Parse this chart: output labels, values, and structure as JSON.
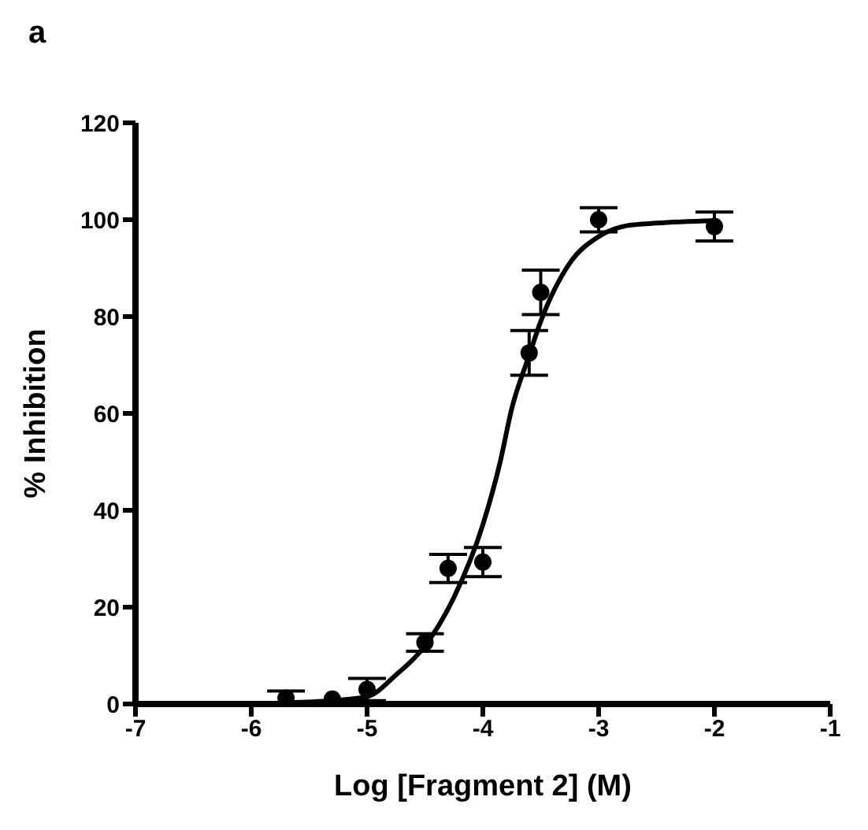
{
  "chart_data": {
    "type": "scatter",
    "title": "a",
    "xlabel": "Log [Fragment 2] (M)",
    "ylabel": "% Inhibition",
    "xlim": [
      -7,
      -1
    ],
    "xticks": [
      -7,
      -6,
      -5,
      -4,
      -3,
      -2,
      -1
    ],
    "ylim": [
      0,
      120
    ],
    "yticks": [
      0,
      20,
      40,
      60,
      80,
      100,
      120
    ],
    "series": [
      {
        "color": "#000000",
        "marker": "circle",
        "x": [
          -5.7,
          -5.3,
          -5.0,
          -4.5,
          -4.3,
          -4.0,
          -3.6,
          -3.5,
          -3.0,
          -2.0
        ],
        "values": [
          1.2,
          1,
          3,
          12.7,
          28,
          29.3,
          72.5,
          85,
          100,
          98.6
        ],
        "errors": [
          1.5,
          null,
          2.3,
          1.8,
          2.9,
          3,
          4.6,
          4.6,
          2.5,
          3
        ]
      },
      {
        "type": "line",
        "color": "#000000",
        "marker": "none",
        "line_style": "solid",
        "x": [
          -5.7,
          -5.3,
          -5.0,
          -4.75,
          -4.5,
          -4.25,
          -4.0,
          -3.85,
          -3.75,
          -3.6,
          -3.5,
          -3.25,
          -3.0,
          -2.75,
          -2.5,
          -2.0
        ],
        "values": [
          0.3,
          0.7,
          1.5,
          6,
          12,
          22,
          37,
          50,
          61,
          72,
          79,
          91,
          96.5,
          98.8,
          99.3,
          99.8
        ]
      }
    ]
  }
}
